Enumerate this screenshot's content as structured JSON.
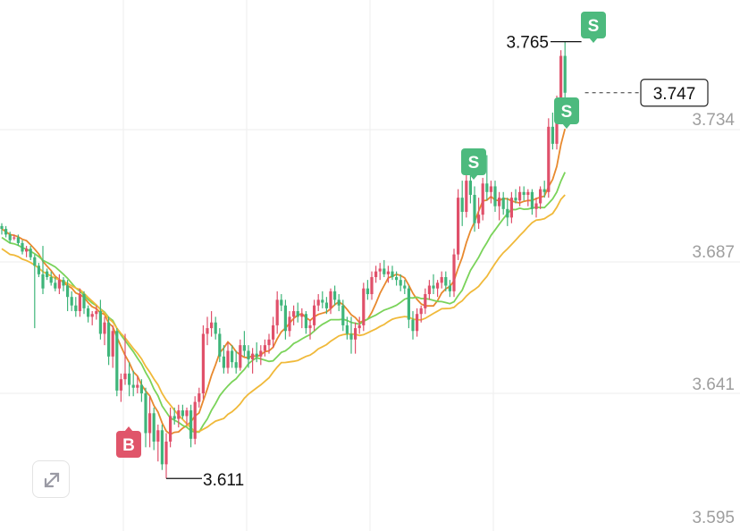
{
  "chart_data": {
    "type": "candlestick",
    "title": "",
    "y_ticks": [
      "3.734",
      "3.687",
      "3.641",
      "3.595"
    ],
    "ylim": [
      3.595,
      3.78
    ],
    "last_price": "3.747",
    "high_marker": "3.765",
    "low_marker": "3.611",
    "signals": [
      {
        "label": "B",
        "type": "buy",
        "candle": 30
      },
      {
        "label": "S",
        "type": "sell",
        "candle": 111
      },
      {
        "label": "S",
        "type": "sell",
        "candle": 137
      },
      {
        "label": "S",
        "type": "sell",
        "candle": 141
      }
    ],
    "up_color": "#e0506a",
    "down_color": "#3fb57a",
    "ma_colors": [
      "#e8892e",
      "#7ad35a",
      "#f0b93a"
    ],
    "candles": [
      [
        3.7,
        3.701,
        3.697,
        3.699
      ],
      [
        3.699,
        3.7,
        3.696,
        3.697
      ],
      [
        3.697,
        3.698,
        3.694,
        3.695
      ],
      [
        3.696,
        3.697,
        3.695,
        3.696
      ],
      [
        3.696,
        3.697,
        3.693,
        3.694
      ],
      [
        3.694,
        3.695,
        3.69,
        3.691
      ],
      [
        3.691,
        3.693,
        3.689,
        3.692
      ],
      [
        3.692,
        3.693,
        3.688,
        3.689
      ],
      [
        3.689,
        3.69,
        3.664,
        3.686
      ],
      [
        3.686,
        3.687,
        3.682,
        3.683
      ],
      [
        3.683,
        3.693,
        3.676,
        3.678
      ],
      [
        3.684,
        3.685,
        3.681,
        3.682
      ],
      [
        3.682,
        3.684,
        3.679,
        3.68
      ],
      [
        3.68,
        3.682,
        3.677,
        3.678
      ],
      [
        3.678,
        3.683,
        3.676,
        3.681
      ],
      [
        3.681,
        3.682,
        3.677,
        3.679
      ],
      [
        3.679,
        3.681,
        3.67,
        3.675
      ],
      [
        3.675,
        3.677,
        3.67,
        3.672
      ],
      [
        3.672,
        3.675,
        3.668,
        3.67
      ],
      [
        3.67,
        3.678,
        3.668,
        3.676
      ],
      [
        3.676,
        3.677,
        3.669,
        3.671
      ],
      [
        3.671,
        3.672,
        3.666,
        3.668
      ],
      [
        3.668,
        3.67,
        3.665,
        3.669
      ],
      [
        3.669,
        3.672,
        3.667,
        3.67
      ],
      [
        3.67,
        3.674,
        3.66,
        3.662
      ],
      [
        3.662,
        3.668,
        3.658,
        3.666
      ],
      [
        3.666,
        3.668,
        3.651,
        3.654
      ],
      [
        3.654,
        3.665,
        3.65,
        3.663
      ],
      [
        3.663,
        3.664,
        3.64,
        3.642
      ],
      [
        3.642,
        3.648,
        3.638,
        3.646
      ],
      [
        3.646,
        3.662,
        3.644,
        3.648
      ],
      [
        3.648,
        3.652,
        3.64,
        3.644
      ],
      [
        3.644,
        3.649,
        3.64,
        3.643
      ],
      [
        3.643,
        3.647,
        3.641,
        3.644
      ],
      [
        3.644,
        3.646,
        3.638,
        3.641
      ],
      [
        3.641,
        3.643,
        3.622,
        3.627
      ],
      [
        3.627,
        3.64,
        3.622,
        3.634
      ],
      [
        3.634,
        3.636,
        3.621,
        3.624
      ],
      [
        3.624,
        3.63,
        3.617,
        3.628
      ],
      [
        3.628,
        3.63,
        3.614,
        3.616
      ],
      [
        3.616,
        3.627,
        3.611,
        3.624
      ],
      [
        3.624,
        3.636,
        3.622,
        3.633
      ],
      [
        3.633,
        3.636,
        3.63,
        3.632
      ],
      [
        3.632,
        3.637,
        3.629,
        3.635
      ],
      [
        3.635,
        3.637,
        3.632,
        3.633
      ],
      [
        3.633,
        3.636,
        3.63,
        3.635
      ],
      [
        3.635,
        3.637,
        3.622,
        3.625
      ],
      [
        3.625,
        3.64,
        3.623,
        3.638
      ],
      [
        3.638,
        3.643,
        3.636,
        3.641
      ],
      [
        3.641,
        3.665,
        3.639,
        3.662
      ],
      [
        3.662,
        3.668,
        3.658,
        3.664
      ],
      [
        3.664,
        3.67,
        3.661,
        3.666
      ],
      [
        3.666,
        3.668,
        3.66,
        3.662
      ],
      [
        3.662,
        3.664,
        3.652,
        3.654
      ],
      [
        3.654,
        3.658,
        3.648,
        3.65
      ],
      [
        3.65,
        3.659,
        3.648,
        3.656
      ],
      [
        3.656,
        3.658,
        3.65,
        3.652
      ],
      [
        3.652,
        3.656,
        3.648,
        3.65
      ],
      [
        3.65,
        3.66,
        3.649,
        3.658
      ],
      [
        3.658,
        3.663,
        3.654,
        3.656
      ],
      [
        3.656,
        3.658,
        3.65,
        3.653
      ],
      [
        3.653,
        3.657,
        3.648,
        3.655
      ],
      [
        3.655,
        3.659,
        3.652,
        3.654
      ],
      [
        3.654,
        3.658,
        3.651,
        3.656
      ],
      [
        3.656,
        3.66,
        3.654,
        3.658
      ],
      [
        3.658,
        3.662,
        3.655,
        3.66
      ],
      [
        3.66,
        3.668,
        3.657,
        3.665
      ],
      [
        3.665,
        3.677,
        3.662,
        3.674
      ],
      [
        3.674,
        3.676,
        3.67,
        3.672
      ],
      [
        3.672,
        3.674,
        3.66,
        3.663
      ],
      [
        3.663,
        3.67,
        3.661,
        3.668
      ],
      [
        3.668,
        3.672,
        3.665,
        3.67
      ],
      [
        3.67,
        3.673,
        3.666,
        3.668
      ],
      [
        3.668,
        3.671,
        3.664,
        3.669
      ],
      [
        3.669,
        3.67,
        3.662,
        3.664
      ],
      [
        3.664,
        3.667,
        3.66,
        3.665
      ],
      [
        3.665,
        3.674,
        3.663,
        3.672
      ],
      [
        3.672,
        3.676,
        3.67,
        3.674
      ],
      [
        3.674,
        3.677,
        3.671,
        3.673
      ],
      [
        3.673,
        3.675,
        3.669,
        3.671
      ],
      [
        3.671,
        3.678,
        3.669,
        3.677
      ],
      [
        3.677,
        3.679,
        3.672,
        3.674
      ],
      [
        3.674,
        3.676,
        3.67,
        3.672
      ],
      [
        3.672,
        3.674,
        3.663,
        3.665
      ],
      [
        3.665,
        3.668,
        3.66,
        3.662
      ],
      [
        3.662,
        3.668,
        3.655,
        3.66
      ],
      [
        3.66,
        3.666,
        3.655,
        3.664
      ],
      [
        3.664,
        3.668,
        3.662,
        3.665
      ],
      [
        3.665,
        3.68,
        3.663,
        3.678
      ],
      [
        3.678,
        3.681,
        3.674,
        3.676
      ],
      [
        3.676,
        3.684,
        3.674,
        3.682
      ],
      [
        3.682,
        3.686,
        3.68,
        3.684
      ],
      [
        3.684,
        3.687,
        3.681,
        3.685
      ],
      [
        3.685,
        3.688,
        3.682,
        3.683
      ],
      [
        3.683,
        3.686,
        3.68,
        3.684
      ],
      [
        3.684,
        3.686,
        3.681,
        3.682
      ],
      [
        3.682,
        3.684,
        3.679,
        3.681
      ],
      [
        3.681,
        3.683,
        3.677,
        3.679
      ],
      [
        3.679,
        3.681,
        3.676,
        3.678
      ],
      [
        3.678,
        3.679,
        3.664,
        3.667
      ],
      [
        3.667,
        3.67,
        3.66,
        3.663
      ],
      [
        3.663,
        3.671,
        3.661,
        3.669
      ],
      [
        3.669,
        3.672,
        3.666,
        3.671
      ],
      [
        3.671,
        3.678,
        3.669,
        3.676
      ],
      [
        3.676,
        3.681,
        3.674,
        3.679
      ],
      [
        3.679,
        3.683,
        3.676,
        3.678
      ],
      [
        3.678,
        3.681,
        3.675,
        3.68
      ],
      [
        3.68,
        3.684,
        3.678,
        3.682
      ],
      [
        3.682,
        3.684,
        3.677,
        3.679
      ],
      [
        3.679,
        3.681,
        3.675,
        3.677
      ],
      [
        3.677,
        3.692,
        3.675,
        3.69
      ],
      [
        3.69,
        3.713,
        3.688,
        3.71
      ],
      [
        3.71,
        3.716,
        3.7,
        3.705
      ],
      [
        3.705,
        3.718,
        3.703,
        3.716
      ],
      [
        3.716,
        3.72,
        3.708,
        3.711
      ],
      [
        3.711,
        3.714,
        3.698,
        3.701
      ],
      [
        3.701,
        3.71,
        3.699,
        3.704
      ],
      [
        3.704,
        3.717,
        3.702,
        3.715
      ],
      [
        3.715,
        3.725,
        3.709,
        3.712
      ],
      [
        3.712,
        3.716,
        3.708,
        3.714
      ],
      [
        3.714,
        3.716,
        3.705,
        3.707
      ],
      [
        3.707,
        3.712,
        3.702,
        3.71
      ],
      [
        3.71,
        3.712,
        3.704,
        3.706
      ],
      [
        3.706,
        3.71,
        3.7,
        3.703
      ],
      [
        3.703,
        3.712,
        3.701,
        3.71
      ],
      [
        3.71,
        3.713,
        3.708,
        3.709
      ],
      [
        3.709,
        3.714,
        3.707,
        3.712
      ],
      [
        3.712,
        3.714,
        3.709,
        3.711
      ],
      [
        3.711,
        3.713,
        3.707,
        3.712
      ],
      [
        3.712,
        3.713,
        3.704,
        3.706
      ],
      [
        3.706,
        3.71,
        3.703,
        3.708
      ],
      [
        3.708,
        3.714,
        3.706,
        3.713
      ],
      [
        3.713,
        3.716,
        3.71,
        3.712
      ],
      [
        3.712,
        3.738,
        3.71,
        3.735
      ],
      [
        3.735,
        3.74,
        3.727,
        3.729
      ],
      [
        3.729,
        3.746,
        3.727,
        3.744
      ],
      [
        3.744,
        3.762,
        3.742,
        3.76
      ],
      [
        3.76,
        3.765,
        3.745,
        3.747
      ]
    ]
  }
}
